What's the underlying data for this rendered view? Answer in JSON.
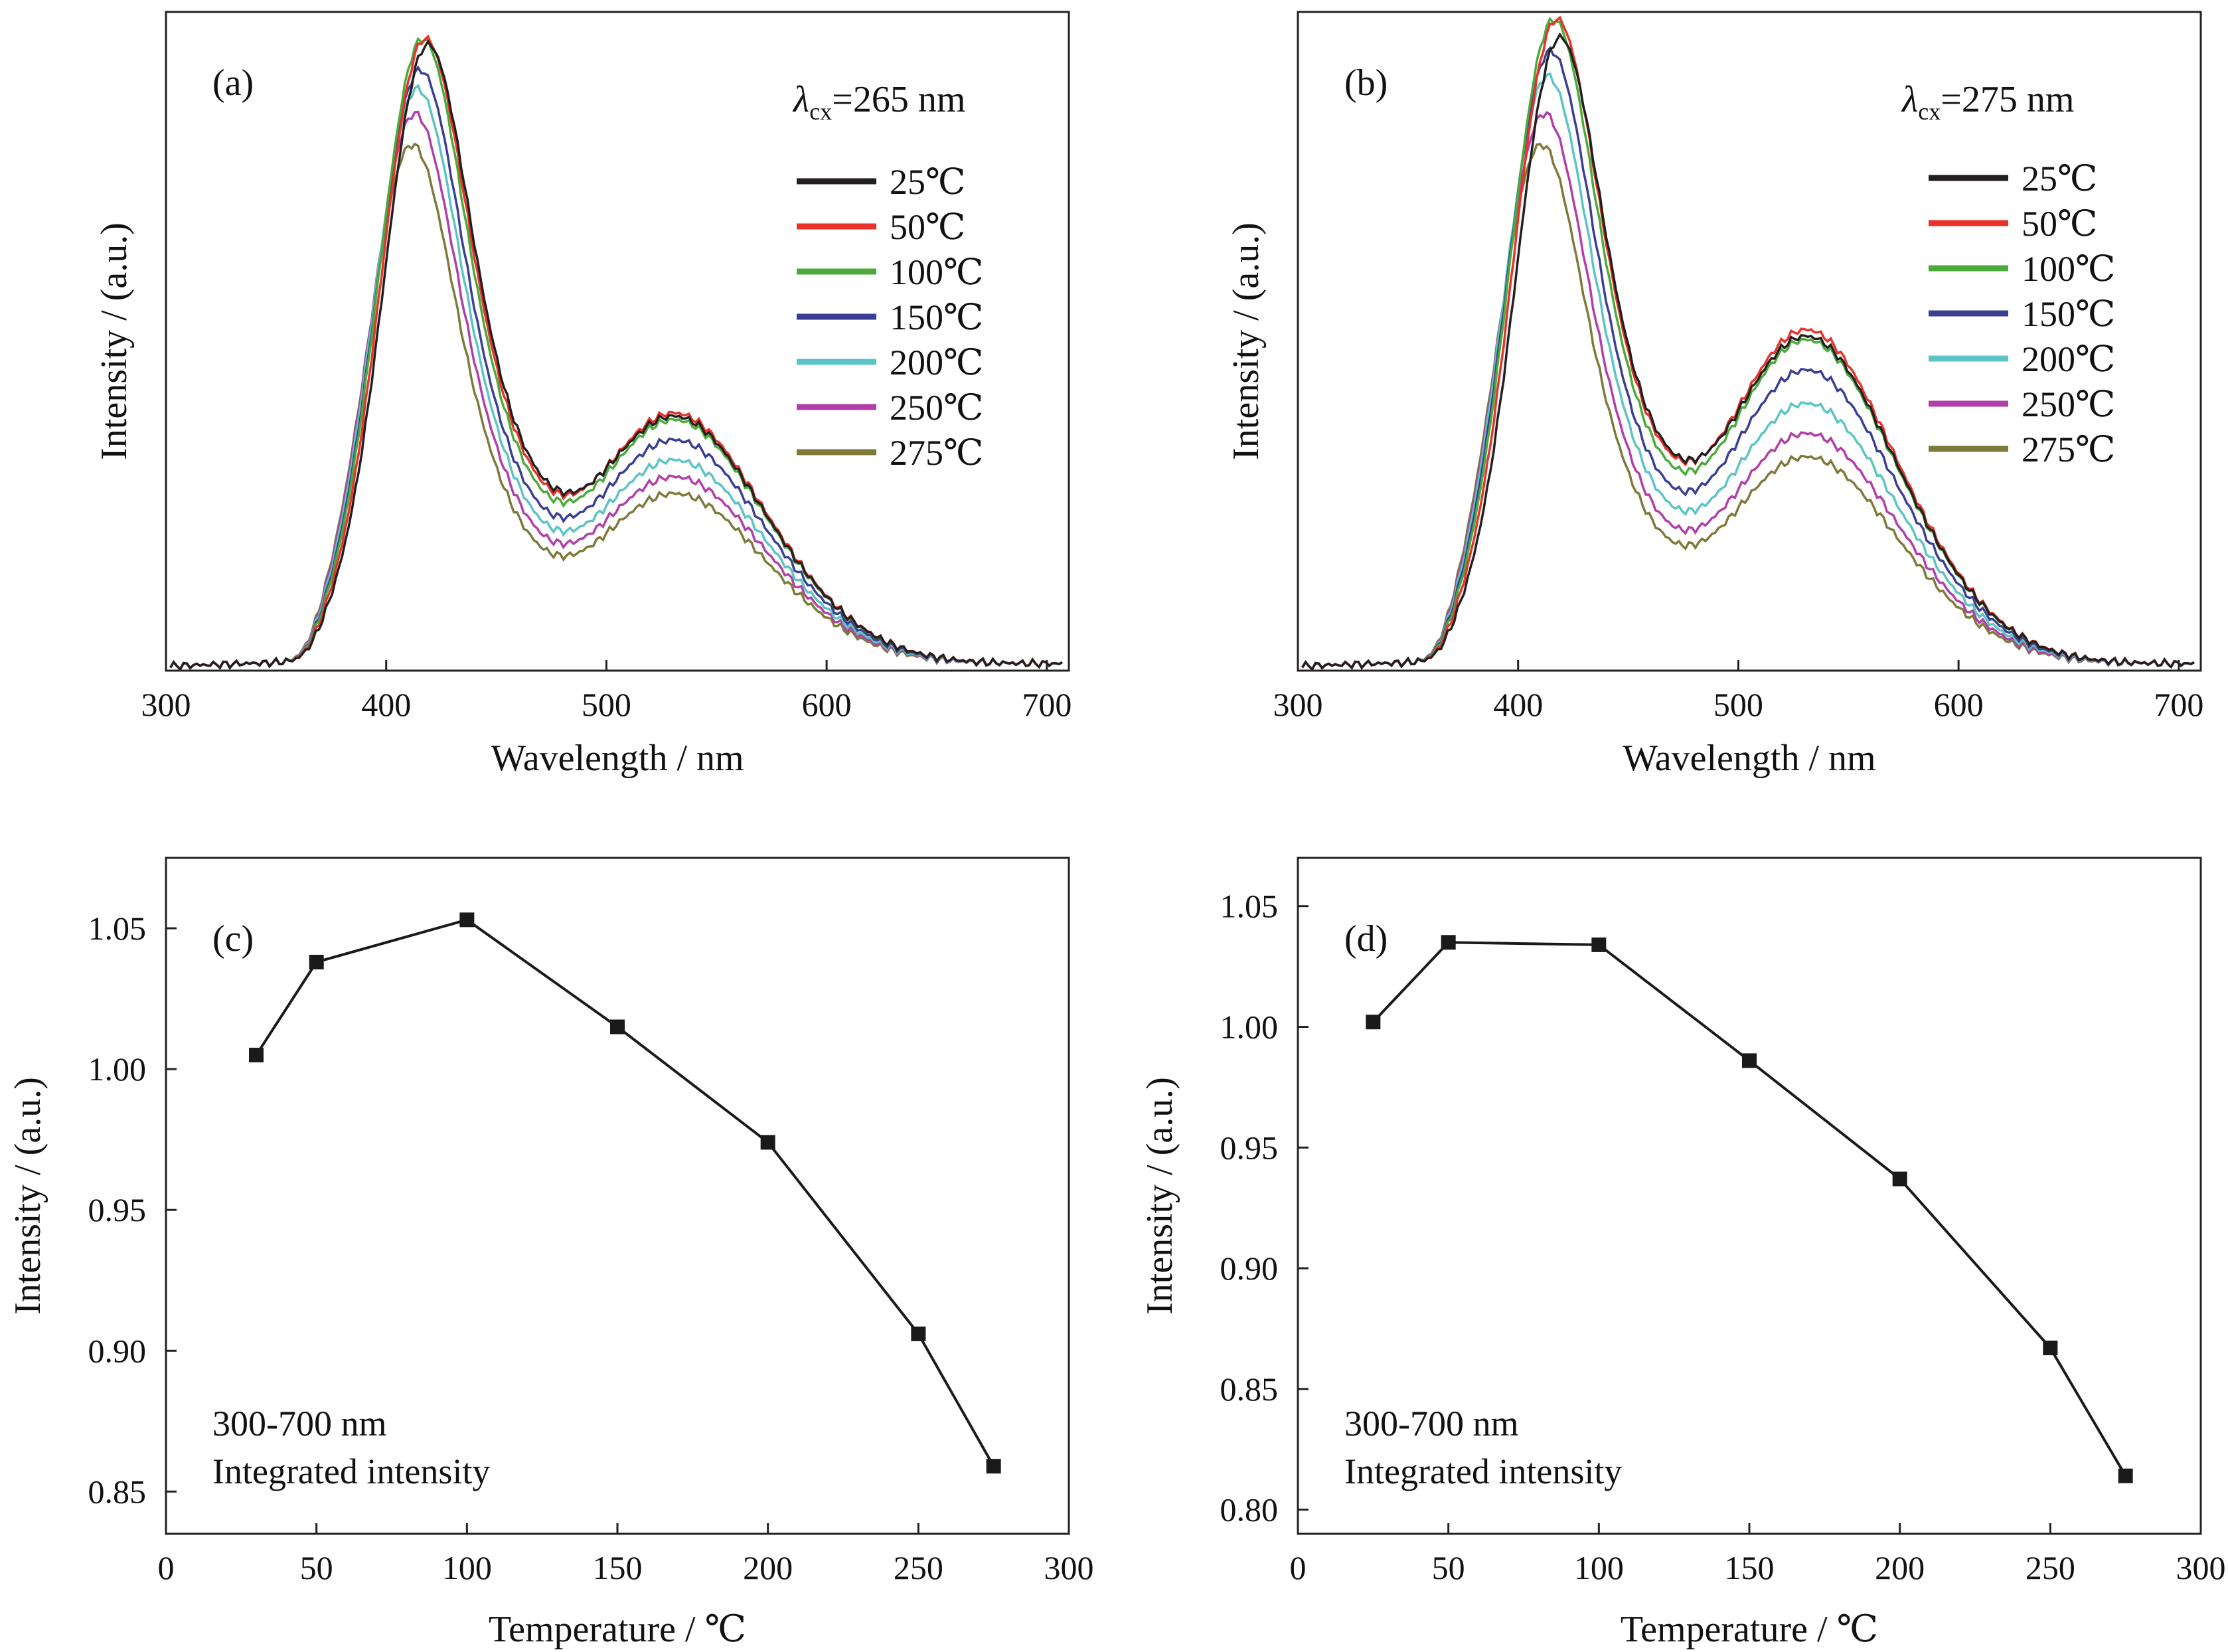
{
  "chart_data": [
    {
      "type": "line",
      "panel_label": "(a)",
      "excitation_symbol": "λ",
      "excitation_subscript": "cx",
      "excitation_value": "=265 nm",
      "xlabel": "Wavelength / nm",
      "ylabel": "Intensity / (a.u.)",
      "xlim": [
        300,
        710
      ],
      "ylim": [
        0,
        1.15
      ],
      "xticks": [
        "300",
        "400",
        "500",
        "600",
        "700"
      ],
      "yticks": [],
      "legend_position": "top-right",
      "grid": false,
      "series": [
        {
          "name": "25℃",
          "color": "#231f20",
          "peak1": 1.0,
          "peak2": 0.37
        },
        {
          "name": "50℃",
          "color": "#e8322a",
          "peak1": 1.01,
          "peak2": 0.375
        },
        {
          "name": "100℃",
          "color": "#4aab3a",
          "peak1": 1.01,
          "peak2": 0.365
        },
        {
          "name": "150℃",
          "color": "#3b3f93",
          "peak1": 0.96,
          "peak2": 0.335
        },
        {
          "name": "200℃",
          "color": "#5cc4c4",
          "peak1": 0.93,
          "peak2": 0.305
        },
        {
          "name": "250℃",
          "color": "#b23fa8",
          "peak1": 0.89,
          "peak2": 0.28
        },
        {
          "name": "275℃",
          "color": "#7d7a3a",
          "peak1": 0.84,
          "peak2": 0.255
        }
      ]
    },
    {
      "type": "line",
      "panel_label": "(b)",
      "excitation_symbol": "λ",
      "excitation_subscript": "cx",
      "excitation_value": "=275 nm",
      "xlabel": "Wavelength / nm",
      "ylabel": "Intensity / (a.u.)",
      "xlim": [
        300,
        710
      ],
      "ylim": [
        0,
        1.15
      ],
      "xticks": [
        "300",
        "400",
        "500",
        "600",
        "700"
      ],
      "yticks": [],
      "legend_position": "top-right",
      "grid": false,
      "series": [
        {
          "name": "25℃",
          "color": "#231f20",
          "peak1": 1.01,
          "peak2": 0.49
        },
        {
          "name": "50℃",
          "color": "#e8322a",
          "peak1": 1.04,
          "peak2": 0.5
        },
        {
          "name": "100℃",
          "color": "#4aab3a",
          "peak1": 1.04,
          "peak2": 0.485
        },
        {
          "name": "150℃",
          "color": "#3b3f93",
          "peak1": 0.99,
          "peak2": 0.44
        },
        {
          "name": "200℃",
          "color": "#5cc4c4",
          "peak1": 0.95,
          "peak2": 0.39
        },
        {
          "name": "250℃",
          "color": "#b23fa8",
          "peak1": 0.89,
          "peak2": 0.345
        },
        {
          "name": "275℃",
          "color": "#7d7a3a",
          "peak1": 0.84,
          "peak2": 0.31
        }
      ]
    },
    {
      "type": "line",
      "panel_label": "(c)",
      "xlabel": "Temperature / ℃",
      "ylabel": "Intensity / (a.u.)",
      "xlim": [
        0,
        300
      ],
      "ylim": [
        0.835,
        1.075
      ],
      "xticks": [
        "0",
        "50",
        "100",
        "150",
        "200",
        "250",
        "300"
      ],
      "yticks": [
        "0.85",
        "0.90",
        "0.95",
        "1.00",
        "1.05"
      ],
      "notes": [
        "300-700 nm",
        "Integrated intensity"
      ],
      "grid": false,
      "series": [
        {
          "color": "#1a1a1a",
          "x": [
            30,
            50,
            100,
            150,
            200,
            250,
            275
          ],
          "y": [
            1.005,
            1.038,
            1.053,
            1.015,
            0.974,
            0.906,
            0.859
          ]
        }
      ]
    },
    {
      "type": "line",
      "panel_label": "(d)",
      "xlabel": "Temperature / ℃",
      "ylabel": "Intensity / (a.u.)",
      "xlim": [
        0,
        300
      ],
      "ylim": [
        0.79,
        1.07
      ],
      "xticks": [
        "0",
        "50",
        "100",
        "150",
        "200",
        "250",
        "300"
      ],
      "yticks": [
        "0.80",
        "0.85",
        "0.90",
        "0.95",
        "1.00",
        "1.05"
      ],
      "notes": [
        "300-700 nm",
        "Integrated intensity"
      ],
      "grid": false,
      "series": [
        {
          "color": "#1a1a1a",
          "x": [
            25,
            50,
            100,
            150,
            200,
            250,
            275
          ],
          "y": [
            1.002,
            1.035,
            1.034,
            0.986,
            0.937,
            0.867,
            0.814
          ]
        }
      ]
    }
  ]
}
